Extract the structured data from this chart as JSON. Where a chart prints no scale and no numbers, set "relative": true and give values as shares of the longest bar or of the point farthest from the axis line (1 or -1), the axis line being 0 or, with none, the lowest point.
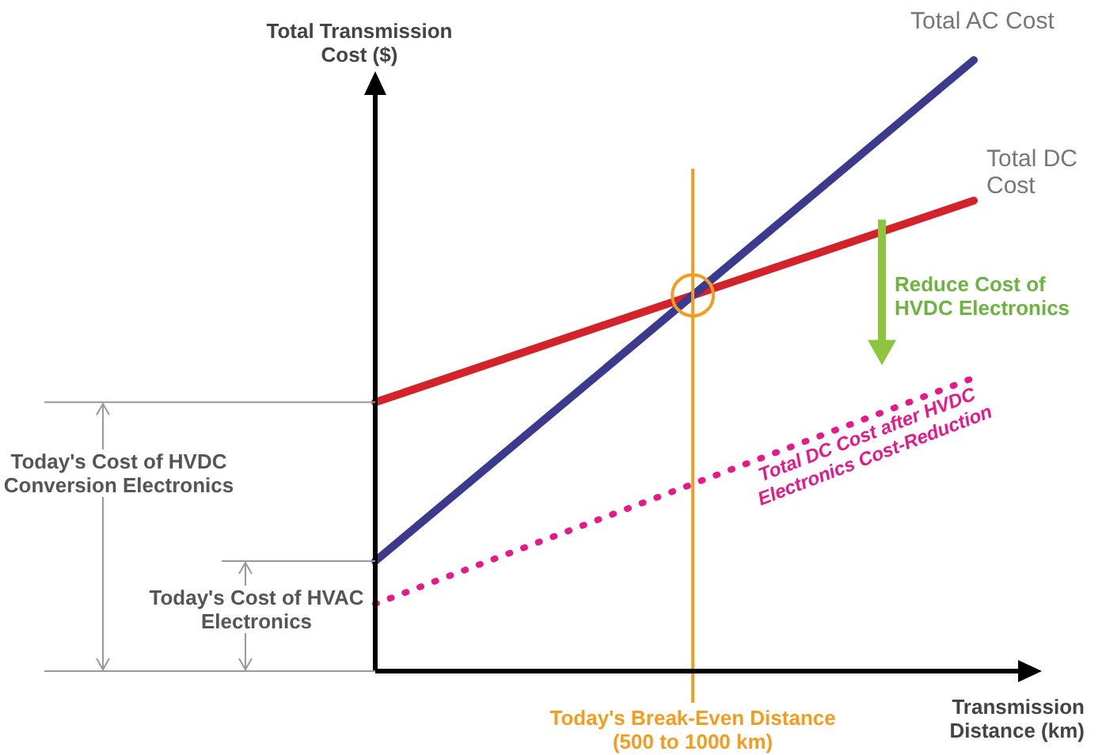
{
  "chart_data": {
    "type": "line",
    "relative": true,
    "xlabel": "Transmission Distance (km)",
    "ylabel": "Total Transmission Cost ($)",
    "categories": [
      null,
      null
    ],
    "legend": false,
    "marker": "none",
    "series": [
      {
        "name": "Total AC Cost",
        "color": "#3b3a8f",
        "values": [
          0.18,
          1
        ]
      },
      {
        "name": "Total DC Cost",
        "color": "#d3222a",
        "values": [
          0.44,
          0.77
        ]
      },
      {
        "name": "Total DC Cost after HVDC Electronics Cost-Reduction",
        "color": "#e6198a",
        "line_style": "dotted",
        "values": [
          0.11,
          0.48
        ]
      }
    ],
    "annotations": [
      "Reduce Cost of HVDC Electronics",
      "Today's Cost of HVDC Conversion Electronics",
      "Today's Cost of HVAC Electronics",
      "Today's Break-Even Distance (500 to 1000 km)"
    ]
  }
}
